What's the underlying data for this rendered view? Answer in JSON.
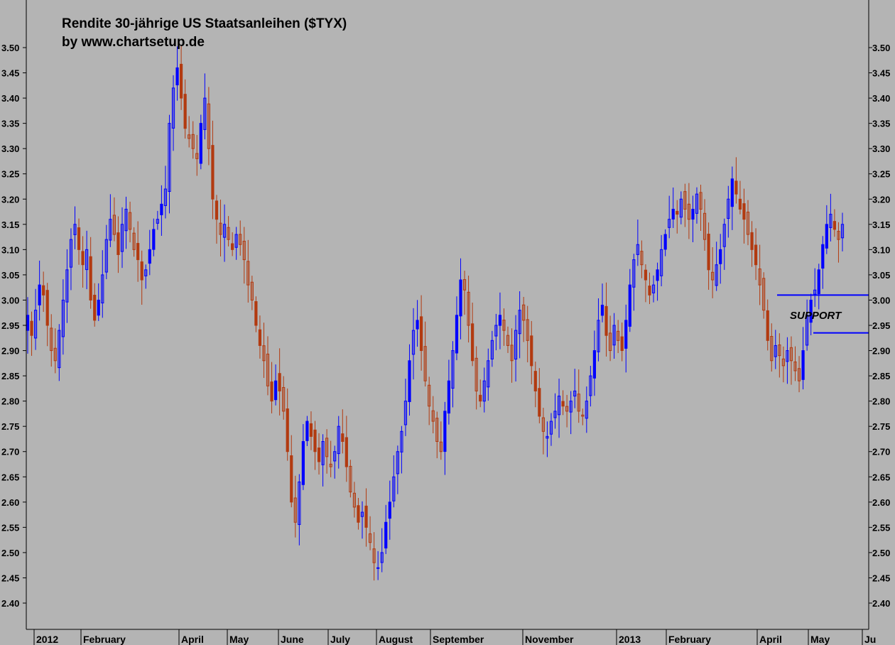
{
  "chart_data": {
    "type": "candlestick",
    "title": "Rendite 30-jährige US Staatsanleihen  ($TYX)",
    "subtitle": "by www.chartsetup.de",
    "ylim": [
      2.35,
      3.55
    ],
    "y_ticks": [
      "2.40",
      "2.45",
      "2.50",
      "2.55",
      "2.60",
      "2.65",
      "2.70",
      "2.75",
      "2.80",
      "2.85",
      "2.90",
      "2.95",
      "3.00",
      "3.05",
      "3.10",
      "3.15",
      "3.20",
      "3.25",
      "3.30",
      "3.35",
      "3.40",
      "3.45",
      "3.50"
    ],
    "x_labels": [
      "2012",
      "February",
      "April",
      "May",
      "June",
      "July",
      "August",
      "September",
      "November",
      "2013",
      "February",
      "April",
      "May",
      "Ju"
    ],
    "up_color": "#0000ff",
    "down_color": "#b23a10",
    "closes": [
      2.97,
      2.93,
      2.98,
      3.03,
      3.01,
      2.95,
      2.9,
      2.88,
      2.94,
      3.0,
      3.06,
      3.12,
      3.15,
      3.1,
      3.07,
      3.1,
      3.0,
      2.96,
      3.0,
      3.05,
      3.12,
      3.16,
      3.13,
      3.09,
      3.15,
      3.18,
      3.14,
      3.1,
      3.08,
      3.04,
      3.06,
      3.1,
      3.14,
      3.16,
      3.19,
      3.22,
      3.35,
      3.42,
      3.46,
      3.4,
      3.34,
      3.32,
      3.3,
      3.28,
      3.35,
      3.4,
      3.3,
      3.2,
      3.16,
      3.13,
      3.15,
      3.12,
      3.1,
      3.13,
      3.11,
      3.08,
      3.03,
      3.0,
      2.95,
      2.91,
      2.88,
      2.83,
      2.8,
      2.84,
      2.82,
      2.78,
      2.7,
      2.6,
      2.56,
      2.64,
      2.72,
      2.76,
      2.73,
      2.7,
      2.68,
      2.72,
      2.69,
      2.67,
      2.7,
      2.75,
      2.72,
      2.67,
      2.62,
      2.59,
      2.56,
      2.58,
      2.55,
      2.52,
      2.48,
      2.47,
      2.5,
      2.56,
      2.6,
      2.65,
      2.7,
      2.74,
      2.8,
      2.88,
      2.94,
      2.96,
      2.9,
      2.84,
      2.79,
      2.76,
      2.72,
      2.7,
      2.78,
      2.84,
      2.9,
      2.97,
      3.04,
      3.02,
      2.95,
      2.88,
      2.82,
      2.8,
      2.84,
      2.88,
      2.92,
      2.95,
      2.97,
      2.94,
      2.91,
      2.88,
      2.94,
      2.98,
      2.96,
      2.92,
      2.87,
      2.82,
      2.77,
      2.74,
      2.73,
      2.76,
      2.78,
      2.81,
      2.79,
      2.78,
      2.8,
      2.82,
      2.78,
      2.77,
      2.8,
      2.85,
      2.9,
      2.96,
      2.99,
      2.93,
      2.9,
      2.95,
      2.92,
      2.9,
      2.96,
      3.03,
      3.08,
      3.11,
      3.07,
      3.04,
      3.01,
      3.03,
      3.06,
      3.1,
      3.13,
      3.16,
      3.18,
      3.17,
      3.2,
      3.18,
      3.16,
      3.18,
      3.21,
      3.18,
      3.12,
      3.06,
      3.04,
      3.07,
      3.1,
      3.15,
      3.2,
      3.24,
      3.21,
      3.18,
      3.16,
      3.13,
      3.1,
      3.07,
      3.03,
      2.98,
      2.92,
      2.88,
      2.91,
      2.89,
      2.87,
      2.9,
      2.88,
      2.86,
      2.84,
      2.9,
      2.97,
      3.0,
      3.02,
      3.06,
      3.11,
      3.15,
      3.17,
      3.14,
      3.12,
      3.15
    ]
  },
  "annotations": {
    "support_label": "SUPPORT",
    "support_upper": 3.01,
    "support_lower": 2.935
  }
}
